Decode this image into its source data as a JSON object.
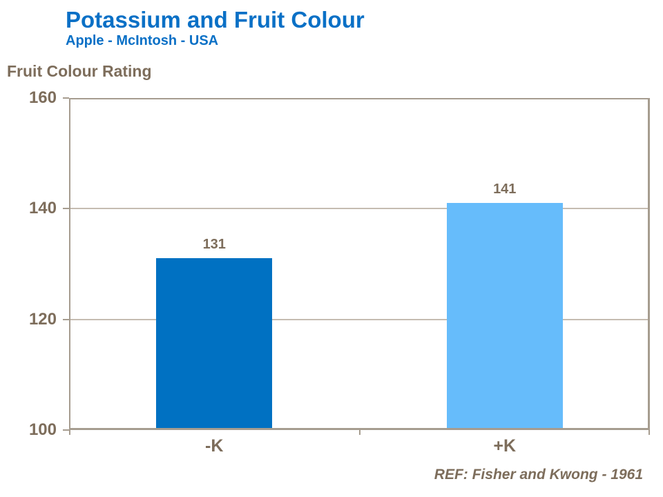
{
  "header": {
    "title": "Potassium and Fruit Colour",
    "subtitle": "Apple - McIntosh - USA"
  },
  "y_axis_title": "Fruit Colour Rating",
  "footer_ref": "REF: Fisher and Kwong - 1961",
  "colors": {
    "title": "#0a70c6",
    "bar_minus_k": "#0071c2",
    "bar_plus_k": "#66bcfb",
    "text": "#7d6d5b",
    "frame": "#a69c8f",
    "gridline": "#c5bcb1"
  },
  "chart_data": {
    "type": "bar",
    "title": "Potassium and Fruit Colour",
    "subtitle": "Apple - McIntosh - USA",
    "xlabel": "",
    "ylabel": "Fruit Colour Rating",
    "categories": [
      "-K",
      "+K"
    ],
    "values": [
      131,
      141
    ],
    "data_labels": [
      "131",
      "141"
    ],
    "bar_colors": [
      "#0071c2",
      "#66bcfb"
    ],
    "ylim": [
      100,
      160
    ],
    "yticks": [
      100,
      120,
      140,
      160
    ],
    "grid": "horizontal-interior-ticks-only",
    "legend": "none",
    "reference": "REF: Fisher and Kwong - 1961"
  }
}
